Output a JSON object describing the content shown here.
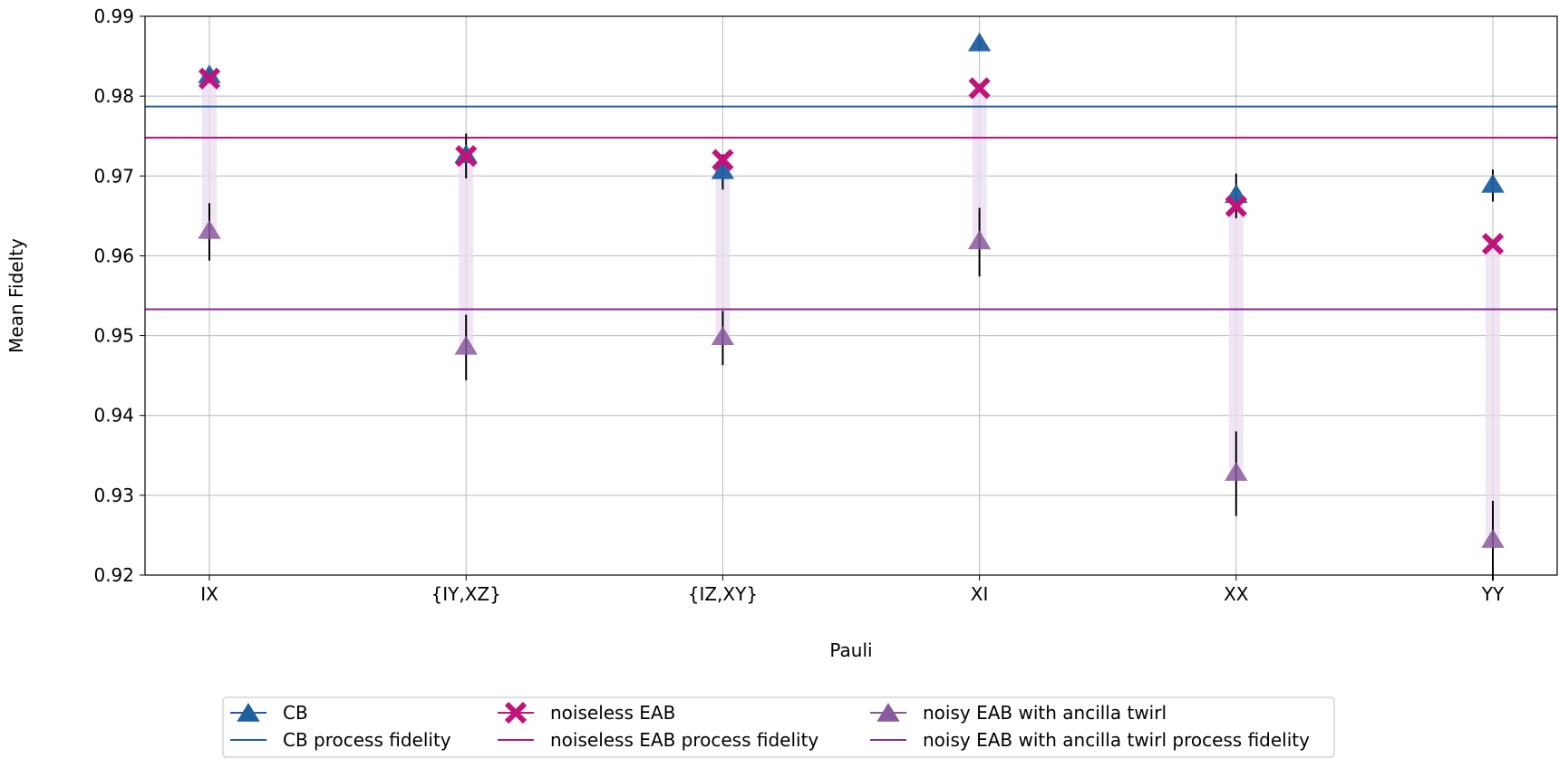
{
  "chart_data": {
    "type": "scatter",
    "title": "",
    "xlabel": "Pauli",
    "ylabel": "Mean Fidelty",
    "categories": [
      "IX",
      "{IY,XZ}",
      "{IZ,XY}",
      "XI",
      "XX",
      "YY"
    ],
    "ylim": [
      0.92,
      0.99
    ],
    "yticks": [
      "0.92",
      "0.93",
      "0.94",
      "0.95",
      "0.96",
      "0.97",
      "0.98",
      "0.99"
    ],
    "grid": true,
    "legend_position": "bottom-center",
    "series": [
      {
        "name": "CB",
        "marker": "triangle",
        "color": "#1f5fa0",
        "values": [
          0.9825,
          0.9725,
          0.9705,
          0.9865,
          0.9675,
          0.9688
        ],
        "err": [
          0.0008,
          0.0028,
          0.0022,
          0.0008,
          0.0028,
          0.002
        ]
      },
      {
        "name": "noiseless EAB",
        "marker": "x",
        "color": "#c0147a",
        "values": [
          0.9822,
          0.9725,
          0.972,
          0.981,
          0.9662,
          0.9615
        ],
        "err": [
          0,
          0,
          0,
          0,
          0,
          0
        ]
      },
      {
        "name": "noisy EAB with ancilla twirl",
        "marker": "triangle",
        "color": "#8a5a9e",
        "values": [
          0.963,
          0.9485,
          0.9497,
          0.9617,
          0.9327,
          0.9243
        ],
        "err": [
          0.0036,
          0.0041,
          0.0034,
          0.0043,
          0.0053,
          0.005
        ]
      }
    ],
    "hlines": [
      {
        "name": "CB process fidelity",
        "value": 0.9787,
        "color": "#1f5fa0"
      },
      {
        "name": "noiseless EAB process fidelity",
        "value": 0.9748,
        "color": "#c0147a"
      },
      {
        "name": "noisy EAB with ancilla twirl process fidelity",
        "value": 0.9533,
        "color": "#8a2a8e"
      }
    ],
    "legend": [
      {
        "label": "CB",
        "kind": "triangle",
        "color": "#1f5fa0"
      },
      {
        "label": "CB process fidelity",
        "kind": "line",
        "color": "#1f5fa0"
      },
      {
        "label": "noiseless EAB",
        "kind": "x",
        "color": "#c0147a"
      },
      {
        "label": "noiseless EAB process fidelity",
        "kind": "line",
        "color": "#c0147a"
      },
      {
        "label": "noisy EAB with ancilla twirl",
        "kind": "triangle",
        "color": "#8a5a9e"
      },
      {
        "label": "noisy EAB with ancilla twirl process fidelity",
        "kind": "line",
        "color": "#8a2a8e"
      }
    ]
  }
}
